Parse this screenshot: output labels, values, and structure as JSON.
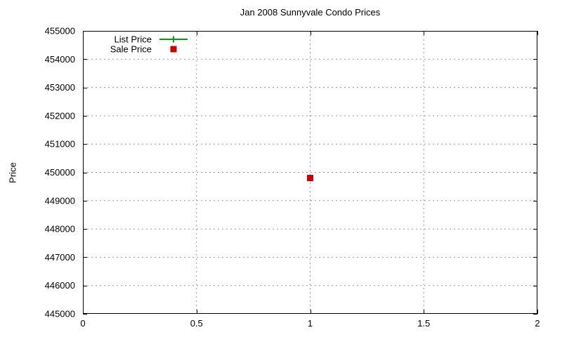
{
  "chart": {
    "title": "Jan 2008 Sunnyvale Condo Prices",
    "ylabel": "Price"
  },
  "colors": {
    "background": "#ffffff",
    "axis": "#000000",
    "grid": "#9a9a9a",
    "text": "#000000",
    "list_price": "#00a000",
    "sale_price": "#cc0000"
  },
  "chart_data": {
    "type": "scatter",
    "title": "Jan 2008 Sunnyvale Condo Prices",
    "xlabel": "",
    "ylabel": "Price",
    "xlim": [
      0,
      2
    ],
    "ylim": [
      445000,
      455000
    ],
    "x_ticks": [
      0,
      0.5,
      1,
      1.5,
      2
    ],
    "x_tick_labels": [
      "0",
      "0.5",
      "1",
      "1.5",
      "2"
    ],
    "y_ticks": [
      445000,
      446000,
      447000,
      448000,
      449000,
      450000,
      451000,
      452000,
      453000,
      454000,
      455000
    ],
    "y_tick_labels": [
      "445000",
      "446000",
      "447000",
      "448000",
      "449000",
      "450000",
      "451000",
      "452000",
      "453000",
      "454000",
      "455000"
    ],
    "grid": true,
    "legend_position": "top-left-inside",
    "series": [
      {
        "name": "List Price",
        "color": "#00a000",
        "marker": "plus",
        "style": "linespoints",
        "points": []
      },
      {
        "name": "Sale Price",
        "color": "#cc0000",
        "marker": "filled-square",
        "style": "points",
        "points": [
          {
            "x": 1,
            "y": 449800
          }
        ]
      }
    ]
  }
}
